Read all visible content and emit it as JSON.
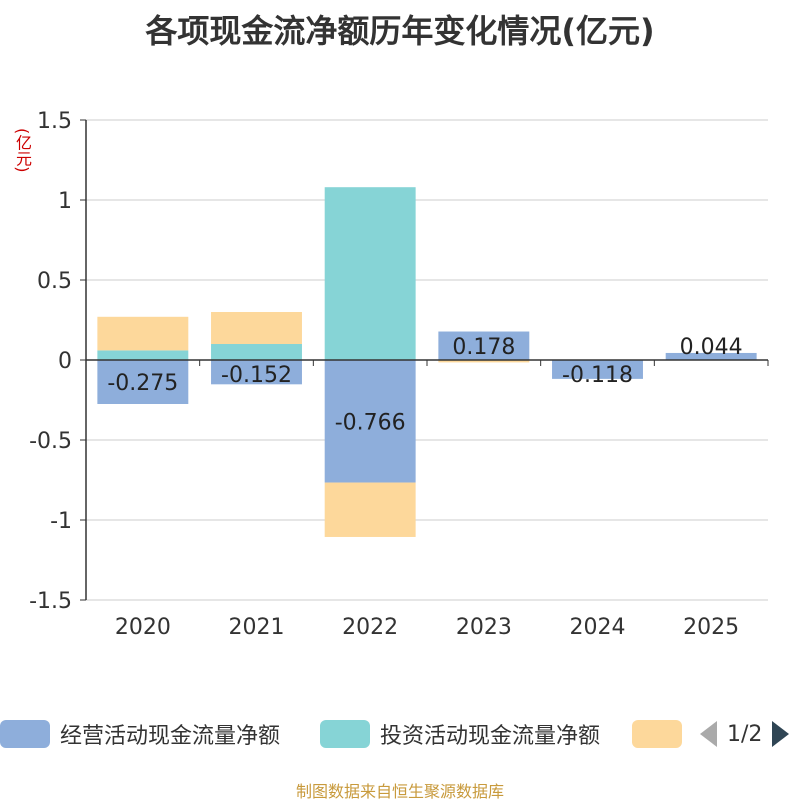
{
  "title": "各项现金流净额历年变化情况(亿元)",
  "unit_label": "(亿元)",
  "footer": "制图数据来自恒生聚源数据库",
  "legend": {
    "items": [
      {
        "label": "经营活动现金流量净额",
        "color": "#8eaedb"
      },
      {
        "label": "投资活动现金流量净额",
        "color": "#86d4d6"
      },
      {
        "label": "",
        "color": "#fdd89b"
      }
    ],
    "page_text": "1/2"
  },
  "chart_data": {
    "type": "bar",
    "stacked": true,
    "categories": [
      "2020",
      "2021",
      "2022",
      "2023",
      "2024",
      "2025"
    ],
    "ylim": [
      -1.5,
      1.5
    ],
    "yticks": [
      1.5,
      1,
      0.5,
      0,
      -0.5,
      -1,
      -1.5
    ],
    "ytick_labels": [
      "1.5",
      "1",
      "0.5",
      "0",
      "-0.5",
      "-1",
      "-1.5"
    ],
    "series": [
      {
        "name": "经营活动现金流量净额",
        "color": "#8eaedb",
        "values": [
          -0.275,
          -0.152,
          -0.766,
          0.178,
          -0.118,
          0.044
        ],
        "labels": [
          "-0.275",
          "-0.152",
          "-0.766",
          "0.178",
          "-0.118",
          "0.044"
        ]
      },
      {
        "name": "投资活动现金流量净额",
        "color": "#86d4d6",
        "values": [
          0.06,
          0.1,
          1.08,
          0.0,
          0.0,
          0.0
        ]
      },
      {
        "name": "",
        "color": "#fdd89b",
        "values": [
          0.21,
          0.2,
          -0.34,
          -0.015,
          0.0,
          0.0
        ]
      }
    ],
    "grid": true,
    "legend_position": "bottom"
  }
}
